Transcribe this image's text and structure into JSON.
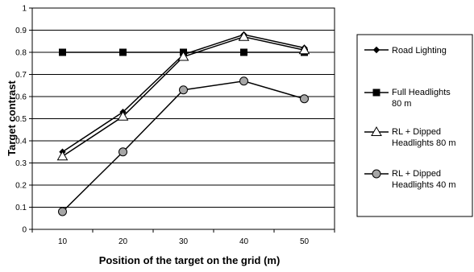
{
  "chart_data": {
    "type": "line",
    "title": "",
    "xlabel": "Position of the target on the grid (m)",
    "ylabel": "Target contrast",
    "categories": [
      "10",
      "20",
      "30",
      "40",
      "50"
    ],
    "x": [
      10,
      20,
      30,
      40,
      50
    ],
    "ylim": [
      0,
      1
    ],
    "yticks": [
      "0",
      "0.1",
      "0.2",
      "0.3",
      "0.4",
      "0.5",
      "0.6",
      "0.7",
      "0.8",
      "0.9",
      "1"
    ],
    "grid": "horizontal",
    "legend_position": "right",
    "series": [
      {
        "name": "Road Lighting",
        "legend_lines": [
          "Road Lighting"
        ],
        "values": [
          0.35,
          0.53,
          0.79,
          0.88,
          0.82
        ],
        "marker": "diamond",
        "color": "#000000",
        "marker_fill": "#000000"
      },
      {
        "name": "Full Headlights 80 m",
        "legend_lines": [
          "Full Headlights",
          "80 m"
        ],
        "values": [
          0.8,
          0.8,
          0.8,
          0.8,
          0.8
        ],
        "marker": "square",
        "color": "#000000",
        "marker_fill": "#000000"
      },
      {
        "name": "RL + Dipped Headlights 80 m",
        "legend_lines": [
          "RL + Dipped",
          "Headlights 80 m"
        ],
        "values": [
          0.33,
          0.51,
          0.78,
          0.87,
          0.81
        ],
        "marker": "triangle",
        "color": "#000000",
        "marker_fill": "#ffffff"
      },
      {
        "name": "RL + Dipped Headlights 40 m",
        "legend_lines": [
          "RL + Dipped",
          "Headlights 40 m"
        ],
        "values": [
          0.08,
          0.35,
          0.63,
          0.67,
          0.59
        ],
        "marker": "circle",
        "color": "#000000",
        "marker_fill": "#a6a6a6"
      }
    ]
  }
}
